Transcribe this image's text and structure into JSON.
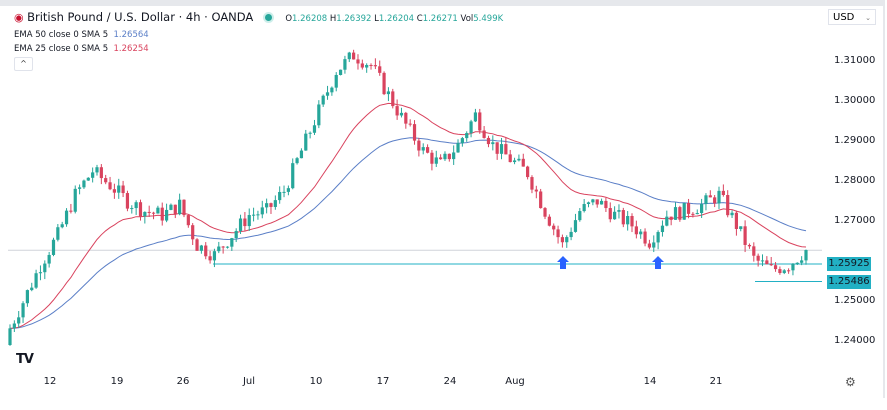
{
  "header": {
    "flag_icon": "gbp-usd-flag-icon",
    "title": "British Pound / U.S. Dollar · 4h · OANDA",
    "market_status_color": "#26a69a",
    "ohlc": {
      "o_label": "O",
      "o": "1.26208",
      "h_label": "H",
      "h": "1.26392",
      "l_label": "L",
      "l": "1.26204",
      "c_label": "C",
      "c": "1.26271",
      "vol_label": "Vol",
      "vol": "5.499K"
    }
  },
  "indicators": [
    {
      "label": "EMA 50 close 0 SMA 5",
      "value": "1.26564",
      "color": "#5b7fc7"
    },
    {
      "label": "EMA 25 close 0 SMA 5",
      "value": "1.26254",
      "color": "#d9435e"
    }
  ],
  "currency_selector": "USD",
  "logo": "TV",
  "chart_data": {
    "type": "candlestick",
    "symbol": "GBPUSD",
    "timeframe": "4h",
    "ylim": [
      1.2365,
      1.3165
    ],
    "yticks": [
      "1.31000",
      "1.30000",
      "1.29000",
      "1.28000",
      "1.27000",
      "1.25000",
      "1.24000"
    ],
    "xticks": [
      "12",
      "19",
      "26",
      "Jul",
      "10",
      "17",
      "24",
      "Aug",
      "14",
      "21"
    ],
    "closes": [
      1.241,
      1.2498,
      1.259,
      1.2665,
      1.2765,
      1.2825,
      1.279,
      1.275,
      1.2725,
      1.2715,
      1.274,
      1.264,
      1.2615,
      1.2665,
      1.2715,
      1.2725,
      1.2775,
      1.2875,
      1.2975,
      1.3075,
      1.3115,
      1.309,
      1.3015,
      1.294,
      1.2875,
      1.284,
      1.289,
      1.2965,
      1.289,
      1.2855,
      1.282,
      1.2725,
      1.264,
      1.2725,
      1.275,
      1.2715,
      1.269,
      1.265,
      1.2715,
      1.2725,
      1.274,
      1.2765,
      1.269,
      1.2605,
      1.2578,
      1.259,
      1.2627
    ],
    "up_color": "#26a69a",
    "down_color": "#d9435e",
    "ema50_color": "#5b7fc7",
    "ema25_color": "#d9435e",
    "levels": [
      {
        "label": "1.25925",
        "value": 1.25925
      },
      {
        "label": "1.25486",
        "value": 1.25486
      }
    ],
    "current_price": 1.2627,
    "annotations": [
      {
        "type": "arrow-up",
        "color": "#2962ff",
        "near": "Aug 3"
      },
      {
        "type": "arrow-up",
        "color": "#2962ff",
        "near": "Aug 15"
      }
    ]
  }
}
